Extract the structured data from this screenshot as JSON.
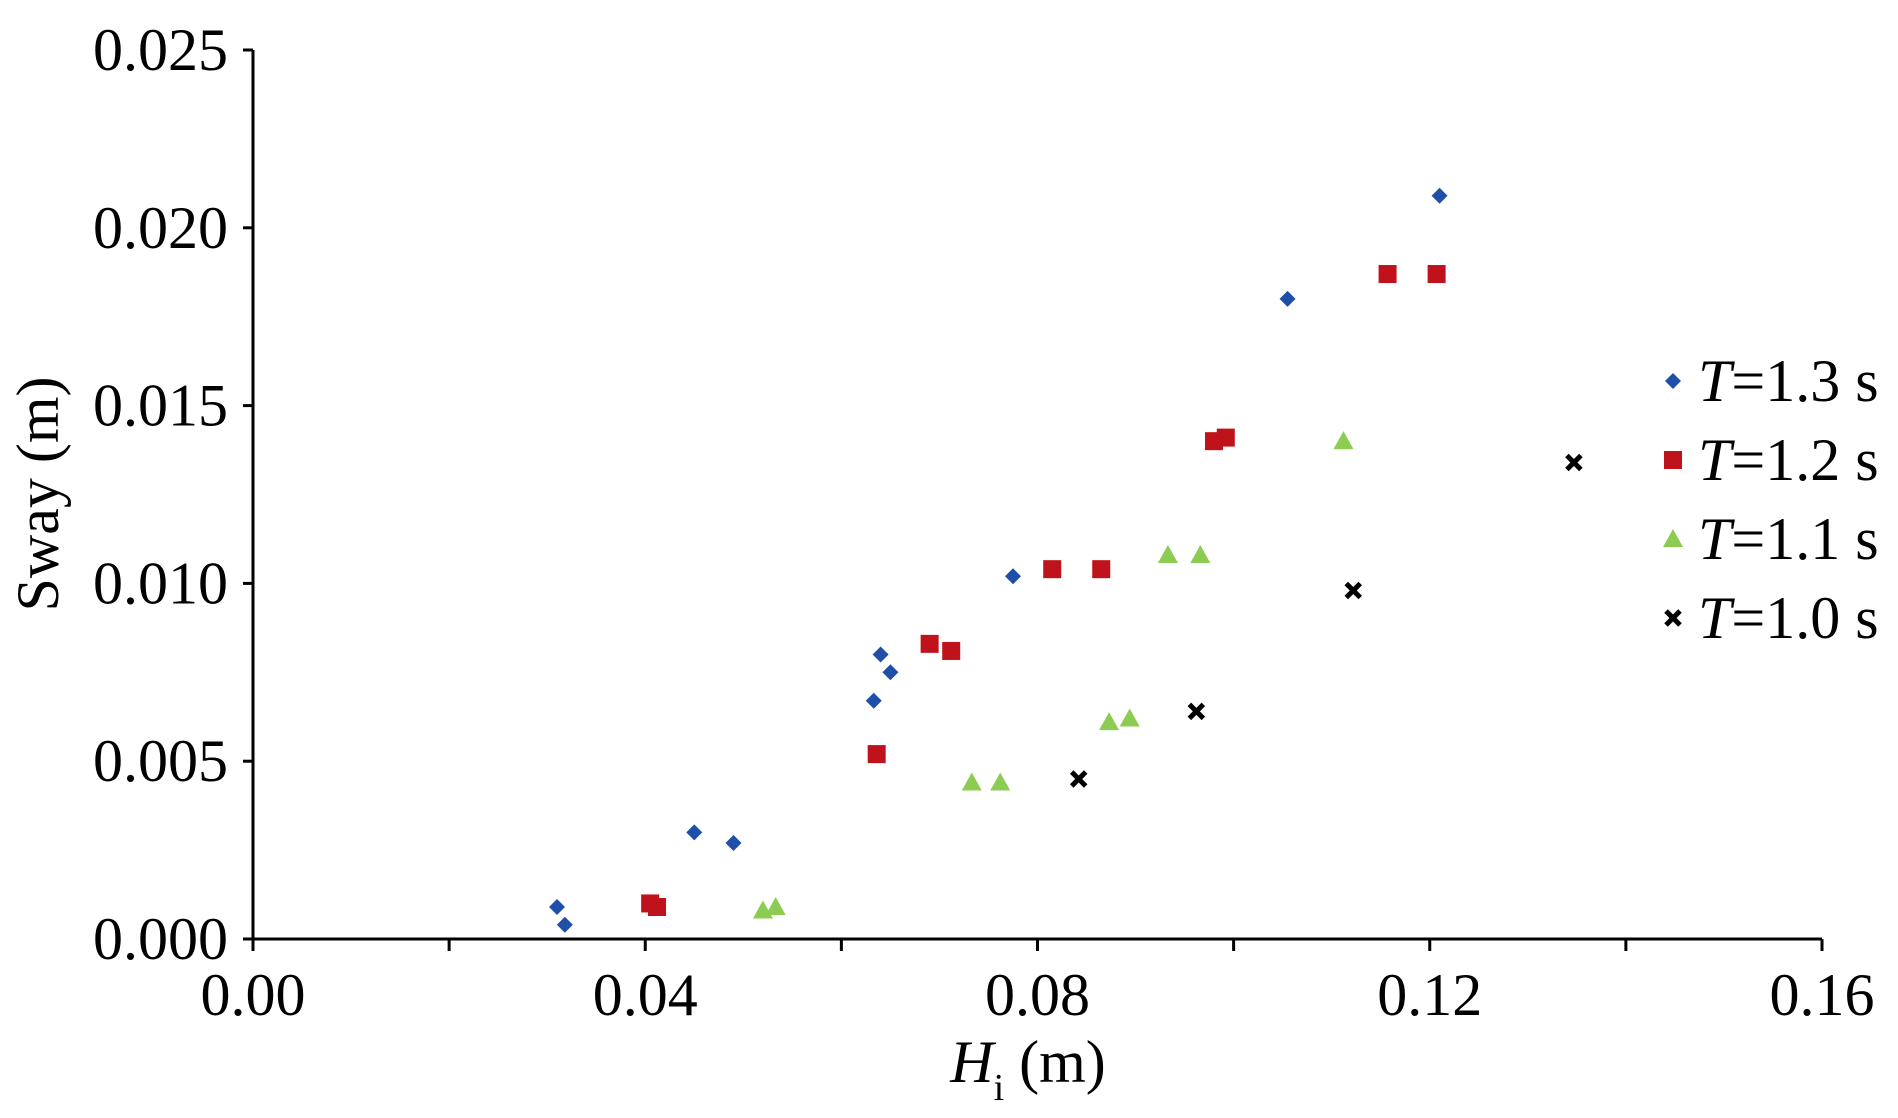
{
  "chart_data": {
    "type": "scatter",
    "title": "",
    "xlabel_main": "H",
    "xlabel_sub": "i",
    "xlabel_unit": " (m)",
    "ylabel": "Sway (m)",
    "xlim": [
      0,
      0.16
    ],
    "ylim": [
      0,
      0.025
    ],
    "x_ticks": [
      {
        "value": 0,
        "label": "0.00"
      },
      {
        "value": 0.04,
        "label": "0.04"
      },
      {
        "value": 0.08,
        "label": "0.08"
      },
      {
        "value": 0.12,
        "label": "0.12"
      },
      {
        "value": 0.16,
        "label": "0.16"
      }
    ],
    "x_minor_ticks": [
      0.02,
      0.06,
      0.1,
      0.14
    ],
    "y_ticks": [
      {
        "value": 0,
        "label": "0.000"
      },
      {
        "value": 0.005,
        "label": "0.005"
      },
      {
        "value": 0.01,
        "label": "0.010"
      },
      {
        "value": 0.015,
        "label": "0.015"
      },
      {
        "value": 0.02,
        "label": "0.020"
      },
      {
        "value": 0.025,
        "label": "0.025"
      }
    ],
    "grid": false,
    "legend_position": "right",
    "series": [
      {
        "name_italic": "T",
        "name_rest": "=1.3 s",
        "marker": "diamond",
        "color": "#1f4fa8",
        "points": [
          [
            0.031,
            0.0009
          ],
          [
            0.0318,
            0.0004
          ],
          [
            0.045,
            0.003
          ],
          [
            0.049,
            0.0027
          ],
          [
            0.0633,
            0.0067
          ],
          [
            0.064,
            0.008
          ],
          [
            0.065,
            0.0075
          ],
          [
            0.0775,
            0.0102
          ],
          [
            0.1055,
            0.018
          ],
          [
            0.121,
            0.0209
          ]
        ]
      },
      {
        "name_italic": "T",
        "name_rest": "=1.2 s",
        "marker": "square",
        "color": "#c0121a",
        "points": [
          [
            0.0405,
            0.001
          ],
          [
            0.0412,
            0.0009
          ],
          [
            0.0636,
            0.0052
          ],
          [
            0.069,
            0.0083
          ],
          [
            0.0712,
            0.0081
          ],
          [
            0.0815,
            0.0104
          ],
          [
            0.0865,
            0.0104
          ],
          [
            0.098,
            0.014
          ],
          [
            0.0992,
            0.0141
          ],
          [
            0.1157,
            0.0187
          ],
          [
            0.1207,
            0.0187
          ]
        ]
      },
      {
        "name_italic": "T",
        "name_rest": "=1.1 s",
        "marker": "triangle",
        "color": "#8ccc52",
        "points": [
          [
            0.052,
            0.0008
          ],
          [
            0.0533,
            0.0009
          ],
          [
            0.0733,
            0.0044
          ],
          [
            0.0762,
            0.0044
          ],
          [
            0.0873,
            0.0061
          ],
          [
            0.0894,
            0.0062
          ],
          [
            0.0933,
            0.0108
          ],
          [
            0.0966,
            0.0108
          ],
          [
            0.1112,
            0.014
          ]
        ]
      },
      {
        "name_italic": "T",
        "name_rest": "=1.0 s",
        "marker": "cross",
        "color": "#000000",
        "points": [
          [
            0.0842,
            0.0045
          ],
          [
            0.0962,
            0.0064
          ],
          [
            0.1122,
            0.0098
          ],
          [
            0.1347,
            0.0134
          ]
        ]
      }
    ]
  }
}
